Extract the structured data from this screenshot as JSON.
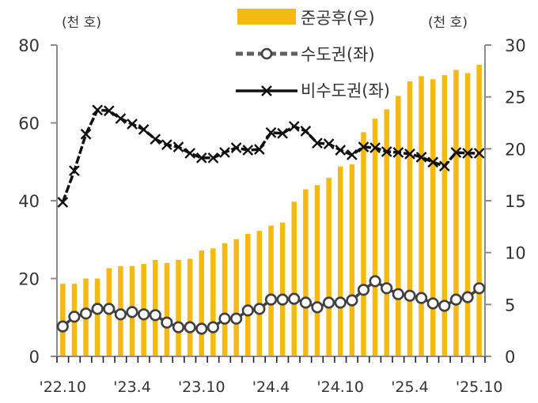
{
  "chart_data": {
    "type": "bar+line",
    "title": "",
    "left_axis": {
      "unit": "(천 호)",
      "ylim": [
        0,
        80
      ],
      "ticks": [
        0,
        20,
        40,
        60,
        80
      ]
    },
    "right_axis": {
      "unit": "(천 호)",
      "ylim": [
        0,
        30
      ],
      "ticks": [
        0,
        5,
        10,
        15,
        20,
        25,
        30
      ]
    },
    "x_tick_labels": [
      "'22.10",
      "'23.4",
      "'23.10",
      "'24.4",
      "'24.10",
      "'25.4",
      "'25.10"
    ],
    "x_tick_label_indices": [
      0,
      6,
      12,
      18,
      24,
      30,
      36
    ],
    "categories": [
      "22.10",
      "22.11",
      "22.12",
      "23.01",
      "23.02",
      "23.03",
      "23.04",
      "23.05",
      "23.06",
      "23.07",
      "23.08",
      "23.09",
      "23.10",
      "23.11",
      "23.12",
      "24.01",
      "24.02",
      "24.03",
      "24.04",
      "24.05",
      "24.06",
      "24.07",
      "24.08",
      "24.09",
      "24.10",
      "24.11",
      "24.12",
      "25.01",
      "25.02",
      "25.03",
      "25.04",
      "25.05",
      "25.06",
      "25.07",
      "25.08",
      "25.09",
      "25.10"
    ],
    "series": [
      {
        "name": "준공후(우)",
        "type": "bar",
        "axis": "right",
        "color": "#F5B90F",
        "values": [
          7.0,
          7.0,
          7.5,
          7.5,
          8.5,
          8.7,
          8.7,
          8.9,
          9.3,
          9.0,
          9.3,
          9.4,
          10.2,
          10.4,
          10.9,
          11.3,
          11.8,
          12.1,
          12.6,
          12.9,
          14.9,
          16.1,
          16.5,
          17.2,
          18.3,
          18.5,
          21.6,
          22.9,
          23.8,
          25.1,
          26.5,
          27.0,
          26.7,
          27.1,
          27.6,
          27.3,
          28.1
        ]
      },
      {
        "name": "수도권(좌)",
        "type": "line",
        "axis": "left",
        "style": "dashed-circle",
        "color": "#404040",
        "values": [
          7.7,
          10.2,
          11.0,
          12.2,
          12.2,
          10.8,
          11.4,
          10.8,
          10.6,
          8.7,
          7.5,
          7.5,
          7.1,
          7.5,
          9.7,
          9.7,
          11.8,
          12.2,
          14.6,
          14.6,
          14.8,
          13.8,
          12.6,
          13.8,
          13.8,
          14.4,
          17.1,
          19.3,
          17.5,
          16.0,
          15.6,
          15.0,
          13.6,
          13.0,
          14.6,
          15.2,
          17.5
        ]
      },
      {
        "name": "비수도권(좌)",
        "type": "line",
        "axis": "left",
        "style": "solid-x",
        "color": "#111111",
        "values": [
          39.6,
          47.7,
          57.1,
          63.3,
          63.1,
          61.1,
          59.7,
          58.3,
          55.8,
          54.4,
          53.8,
          52.2,
          51.0,
          51.0,
          52.4,
          53.6,
          53.0,
          53.2,
          57.5,
          57.3,
          59.1,
          57.9,
          54.8,
          54.6,
          53.0,
          51.8,
          53.8,
          53.6,
          52.6,
          52.4,
          52.0,
          51.2,
          49.9,
          48.9,
          52.4,
          52.2,
          52.2
        ]
      }
    ],
    "legend": {
      "position": "top-center",
      "entries": [
        "준공후(우)",
        "수도권(좌)",
        "비수도권(좌)"
      ]
    },
    "grid": false
  },
  "labels": {
    "left_unit": "(천 호)",
    "right_unit": "(천 호)",
    "legend_bar": "준공후(우)",
    "legend_metro": "수도권(좌)",
    "legend_nonmetro": "비수도권(좌)"
  },
  "colors": {
    "bar": "#F5B90F",
    "axis": "#8C8C8C",
    "metro_line": "#404040",
    "nonmetro_line": "#111111"
  }
}
